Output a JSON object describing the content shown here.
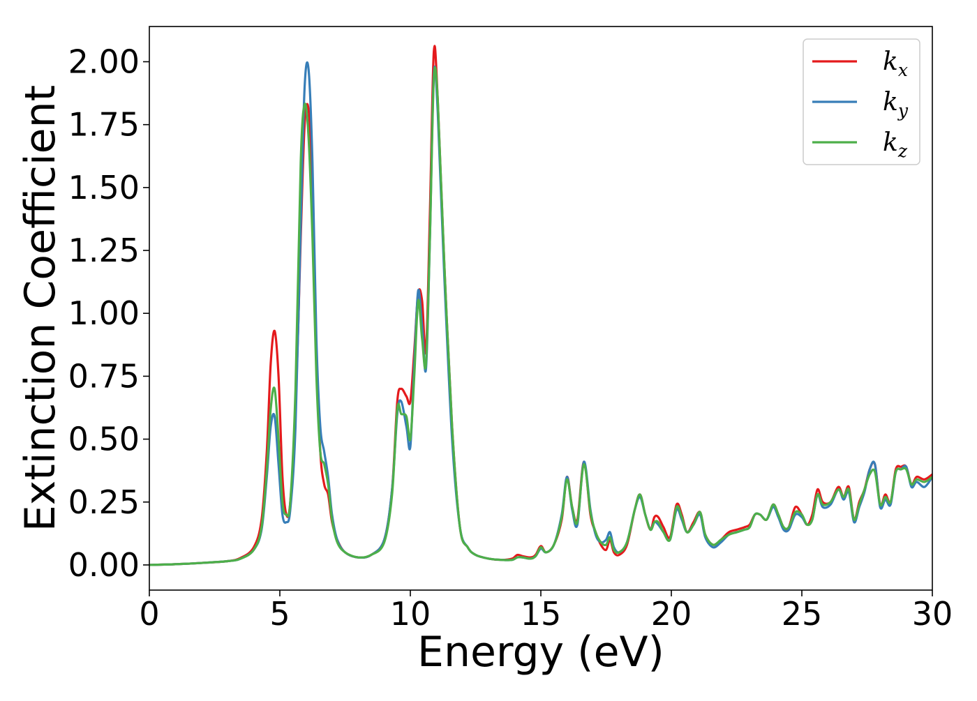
{
  "chart_data": {
    "type": "line",
    "title": "",
    "xlabel": "Energy (eV)",
    "ylabel": "Extinction Coefficient",
    "xlim": [
      0,
      30
    ],
    "ylim": [
      -0.1,
      2.14
    ],
    "grid": false,
    "legend_position": "top-right",
    "x_ticks": [
      0,
      5,
      10,
      15,
      20,
      25,
      30
    ],
    "x_tick_labels": [
      "0",
      "5",
      "10",
      "15",
      "20",
      "25",
      "30"
    ],
    "y_ticks": [
      0,
      0.25,
      0.5,
      0.75,
      1.0,
      1.25,
      1.5,
      1.75,
      2.0
    ],
    "y_tick_labels": [
      "0.00",
      "0.25",
      "0.50",
      "0.75",
      "1.00",
      "1.25",
      "1.50",
      "1.75",
      "2.00"
    ],
    "series": [
      {
        "name": "k_x",
        "legend_base": "k",
        "legend_sub": "x",
        "color": "#e41a1c",
        "x": [
          0,
          1,
          2,
          3,
          3.5,
          4,
          4.3,
          4.5,
          4.65,
          4.8,
          4.95,
          5.1,
          5.25,
          5.4,
          5.6,
          5.8,
          5.95,
          6.1,
          6.25,
          6.4,
          6.55,
          6.7,
          6.85,
          7.0,
          7.2,
          7.5,
          8,
          8.5,
          9.0,
          9.3,
          9.5,
          9.65,
          9.85,
          10.0,
          10.15,
          10.3,
          10.45,
          10.6,
          10.75,
          10.9,
          11.05,
          11.3,
          11.6,
          11.9,
          12.2,
          12.5,
          13,
          13.5,
          13.9,
          14.1,
          14.3,
          14.6,
          14.8,
          15.0,
          15.2,
          15.5,
          15.8,
          16.0,
          16.2,
          16.4,
          16.65,
          16.9,
          17.1,
          17.3,
          17.5,
          17.65,
          17.8,
          18.0,
          18.3,
          18.6,
          18.8,
          19.0,
          19.2,
          19.35,
          19.5,
          19.7,
          19.95,
          20.2,
          20.4,
          20.6,
          20.85,
          21.1,
          21.3,
          21.6,
          21.9,
          22.2,
          22.5,
          22.8,
          23.0,
          23.2,
          23.4,
          23.65,
          23.9,
          24.1,
          24.3,
          24.5,
          24.75,
          25.0,
          25.2,
          25.4,
          25.6,
          25.8,
          26.1,
          26.4,
          26.6,
          26.8,
          27.0,
          27.2,
          27.4,
          27.6,
          27.8,
          28.0,
          28.2,
          28.4,
          28.6,
          28.8,
          29.0,
          29.2,
          29.4,
          29.7,
          30.0
        ],
        "y": [
          0,
          0.003,
          0.008,
          0.015,
          0.028,
          0.07,
          0.18,
          0.45,
          0.8,
          0.93,
          0.75,
          0.35,
          0.2,
          0.25,
          0.6,
          1.3,
          1.75,
          1.81,
          1.5,
          0.85,
          0.45,
          0.32,
          0.28,
          0.17,
          0.1,
          0.05,
          0.03,
          0.04,
          0.1,
          0.3,
          0.65,
          0.7,
          0.67,
          0.65,
          0.85,
          1.08,
          1.05,
          0.85,
          1.4,
          2.04,
          1.85,
          1.2,
          0.55,
          0.15,
          0.07,
          0.04,
          0.025,
          0.02,
          0.025,
          0.04,
          0.035,
          0.03,
          0.04,
          0.075,
          0.05,
          0.08,
          0.18,
          0.35,
          0.23,
          0.18,
          0.41,
          0.2,
          0.13,
          0.08,
          0.06,
          0.1,
          0.05,
          0.04,
          0.08,
          0.22,
          0.28,
          0.2,
          0.14,
          0.19,
          0.19,
          0.15,
          0.11,
          0.24,
          0.2,
          0.13,
          0.17,
          0.21,
          0.12,
          0.08,
          0.1,
          0.13,
          0.14,
          0.15,
          0.16,
          0.2,
          0.2,
          0.18,
          0.24,
          0.2,
          0.15,
          0.15,
          0.23,
          0.2,
          0.16,
          0.2,
          0.3,
          0.25,
          0.25,
          0.31,
          0.27,
          0.31,
          0.18,
          0.25,
          0.3,
          0.38,
          0.4,
          0.24,
          0.28,
          0.25,
          0.38,
          0.39,
          0.39,
          0.32,
          0.35,
          0.34,
          0.36
        ]
      },
      {
        "name": "k_y",
        "legend_base": "k",
        "legend_sub": "y",
        "color": "#377eb8",
        "x": [
          0,
          1,
          2,
          3,
          3.5,
          4,
          4.3,
          4.5,
          4.65,
          4.8,
          4.95,
          5.1,
          5.25,
          5.4,
          5.6,
          5.8,
          5.95,
          6.1,
          6.25,
          6.4,
          6.55,
          6.7,
          6.85,
          7.0,
          7.2,
          7.5,
          8,
          8.5,
          9.0,
          9.3,
          9.5,
          9.65,
          9.85,
          10.0,
          10.15,
          10.3,
          10.45,
          10.6,
          10.75,
          10.9,
          11.05,
          11.3,
          11.6,
          11.9,
          12.2,
          12.5,
          13,
          13.5,
          13.9,
          14.1,
          14.3,
          14.6,
          14.8,
          15.0,
          15.2,
          15.5,
          15.8,
          16.0,
          16.2,
          16.4,
          16.65,
          16.9,
          17.1,
          17.3,
          17.5,
          17.65,
          17.8,
          18.0,
          18.3,
          18.6,
          18.8,
          19.0,
          19.2,
          19.35,
          19.5,
          19.7,
          19.95,
          20.2,
          20.4,
          20.6,
          20.85,
          21.1,
          21.3,
          21.6,
          21.9,
          22.2,
          22.5,
          22.8,
          23.0,
          23.2,
          23.4,
          23.65,
          23.9,
          24.1,
          24.3,
          24.5,
          24.75,
          25.0,
          25.2,
          25.4,
          25.6,
          25.8,
          26.1,
          26.4,
          26.6,
          26.8,
          27.0,
          27.2,
          27.4,
          27.6,
          27.8,
          28.0,
          28.2,
          28.4,
          28.6,
          28.8,
          29.0,
          29.2,
          29.4,
          29.7,
          30.0
        ],
        "y": [
          0,
          0.003,
          0.008,
          0.015,
          0.025,
          0.06,
          0.14,
          0.35,
          0.55,
          0.59,
          0.4,
          0.2,
          0.17,
          0.22,
          0.55,
          1.35,
          1.9,
          1.97,
          1.6,
          0.9,
          0.55,
          0.45,
          0.35,
          0.2,
          0.1,
          0.05,
          0.03,
          0.04,
          0.1,
          0.3,
          0.6,
          0.65,
          0.55,
          0.47,
          0.8,
          1.09,
          0.95,
          0.78,
          1.3,
          1.95,
          1.8,
          1.15,
          0.5,
          0.15,
          0.07,
          0.04,
          0.025,
          0.02,
          0.02,
          0.03,
          0.03,
          0.025,
          0.035,
          0.065,
          0.05,
          0.08,
          0.2,
          0.35,
          0.22,
          0.16,
          0.41,
          0.22,
          0.12,
          0.09,
          0.1,
          0.13,
          0.07,
          0.05,
          0.09,
          0.22,
          0.27,
          0.2,
          0.14,
          0.17,
          0.16,
          0.13,
          0.1,
          0.22,
          0.18,
          0.13,
          0.16,
          0.2,
          0.11,
          0.07,
          0.09,
          0.12,
          0.13,
          0.14,
          0.15,
          0.2,
          0.2,
          0.18,
          0.23,
          0.19,
          0.14,
          0.14,
          0.2,
          0.19,
          0.16,
          0.18,
          0.28,
          0.23,
          0.24,
          0.3,
          0.26,
          0.29,
          0.17,
          0.23,
          0.29,
          0.38,
          0.4,
          0.23,
          0.26,
          0.24,
          0.37,
          0.38,
          0.39,
          0.31,
          0.33,
          0.31,
          0.35
        ]
      },
      {
        "name": "k_z",
        "legend_base": "k",
        "legend_sub": "z",
        "color": "#4daf4a",
        "x": [
          0,
          1,
          2,
          3,
          3.5,
          4,
          4.3,
          4.5,
          4.65,
          4.8,
          4.95,
          5.1,
          5.25,
          5.4,
          5.6,
          5.8,
          5.95,
          6.1,
          6.25,
          6.4,
          6.55,
          6.7,
          6.85,
          7.0,
          7.2,
          7.5,
          8,
          8.5,
          9.0,
          9.3,
          9.5,
          9.65,
          9.85,
          10.0,
          10.15,
          10.3,
          10.45,
          10.6,
          10.75,
          10.9,
          11.05,
          11.3,
          11.6,
          11.9,
          12.2,
          12.5,
          13,
          13.5,
          13.9,
          14.1,
          14.3,
          14.6,
          14.8,
          15.0,
          15.2,
          15.5,
          15.8,
          16.0,
          16.2,
          16.4,
          16.65,
          16.9,
          17.1,
          17.3,
          17.5,
          17.65,
          17.8,
          18.0,
          18.3,
          18.6,
          18.8,
          19.0,
          19.2,
          19.35,
          19.5,
          19.7,
          19.95,
          20.2,
          20.4,
          20.6,
          20.85,
          21.1,
          21.3,
          21.6,
          21.9,
          22.2,
          22.5,
          22.8,
          23.0,
          23.2,
          23.4,
          23.65,
          23.9,
          24.1,
          24.3,
          24.5,
          24.75,
          25.0,
          25.2,
          25.4,
          25.6,
          25.8,
          26.1,
          26.4,
          26.6,
          26.8,
          27.0,
          27.2,
          27.4,
          27.6,
          27.8,
          28.0,
          28.2,
          28.4,
          28.6,
          28.8,
          29.0,
          29.2,
          29.4,
          29.7,
          30.0
        ],
        "y": [
          0,
          0.003,
          0.008,
          0.015,
          0.025,
          0.06,
          0.15,
          0.38,
          0.62,
          0.7,
          0.5,
          0.25,
          0.2,
          0.25,
          0.7,
          1.6,
          1.83,
          1.7,
          1.3,
          0.75,
          0.45,
          0.4,
          0.32,
          0.18,
          0.09,
          0.05,
          0.03,
          0.04,
          0.09,
          0.28,
          0.62,
          0.6,
          0.59,
          0.5,
          0.75,
          1.05,
          0.9,
          0.8,
          1.3,
          1.93,
          1.85,
          1.2,
          0.55,
          0.15,
          0.07,
          0.04,
          0.025,
          0.02,
          0.02,
          0.03,
          0.03,
          0.025,
          0.035,
          0.07,
          0.05,
          0.08,
          0.19,
          0.34,
          0.23,
          0.17,
          0.4,
          0.21,
          0.13,
          0.09,
          0.08,
          0.11,
          0.06,
          0.05,
          0.09,
          0.22,
          0.28,
          0.2,
          0.14,
          0.17,
          0.17,
          0.13,
          0.1,
          0.23,
          0.19,
          0.13,
          0.16,
          0.21,
          0.12,
          0.08,
          0.1,
          0.12,
          0.13,
          0.14,
          0.15,
          0.2,
          0.2,
          0.18,
          0.24,
          0.2,
          0.15,
          0.15,
          0.21,
          0.2,
          0.16,
          0.18,
          0.28,
          0.24,
          0.25,
          0.3,
          0.27,
          0.3,
          0.18,
          0.24,
          0.3,
          0.36,
          0.37,
          0.24,
          0.27,
          0.25,
          0.37,
          0.38,
          0.38,
          0.32,
          0.34,
          0.33,
          0.35
        ]
      }
    ]
  }
}
